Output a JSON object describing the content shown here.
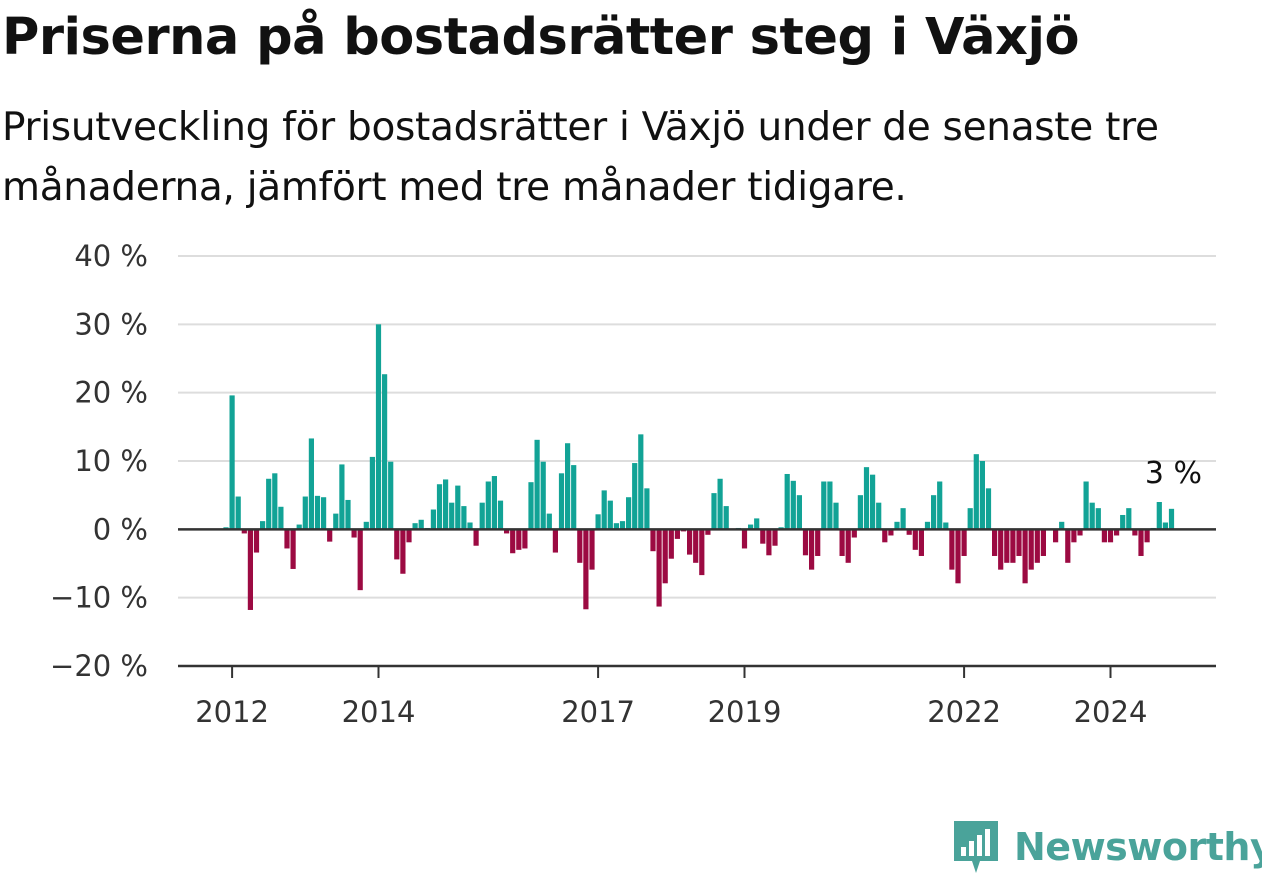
{
  "title": "Priserna på bostadsrätter steg i Växjö",
  "subtitle": "Prisutveckling för bostadsrätter i Växjö under de senaste tre månaderna, jämfört med tre månader tidigare.",
  "brand": {
    "name": "Newsworthy",
    "color": "#4aa39a"
  },
  "colors": {
    "positive": "#12a396",
    "negative": "#9c0a42",
    "grid": "#dddddd",
    "axis": "#333333"
  },
  "chart_data": {
    "type": "bar",
    "title": "Priserna på bostadsrätter steg i Växjö",
    "subtitle": "Prisutveckling för bostadsrätter i Växjö under de senaste tre månaderna, jämfört med tre månader tidigare.",
    "xlabel": "",
    "ylabel": "",
    "ylim": [
      -20,
      40
    ],
    "y_ticks": [
      40,
      30,
      20,
      10,
      0,
      -10,
      -20
    ],
    "y_tick_labels": [
      "40 %",
      "30 %",
      "20 %",
      "10 %",
      "0 %",
      "−10 %",
      "−20 %"
    ],
    "x_ticks": [
      2012,
      2014,
      2017,
      2019,
      2022,
      2024
    ],
    "x_tick_labels": [
      "2012",
      "2014",
      "2017",
      "2019",
      "2022",
      "2024"
    ],
    "grid": true,
    "frequency": "monthly",
    "first_month": "2011-12",
    "annotation": "3 %",
    "values": [
      0.3,
      19.6,
      4.8,
      -0.6,
      -11.8,
      -3.4,
      1.2,
      7.4,
      8.2,
      3.3,
      -2.8,
      -5.8,
      0.7,
      4.8,
      13.3,
      4.9,
      4.7,
      -1.8,
      2.3,
      9.5,
      4.3,
      -1.2,
      -8.9,
      1.1,
      10.6,
      30.0,
      22.7,
      9.9,
      -4.4,
      -6.5,
      -1.9,
      0.9,
      1.4,
      0.2,
      2.9,
      6.6,
      7.3,
      3.9,
      6.4,
      3.4,
      1.0,
      -2.4,
      3.9,
      7.0,
      7.8,
      4.2,
      -0.6,
      -3.5,
      -3.0,
      -2.8,
      6.9,
      13.1,
      9.9,
      2.3,
      -3.4,
      8.2,
      12.6,
      9.4,
      -4.9,
      -11.7,
      -5.9,
      2.2,
      5.7,
      4.2,
      0.9,
      1.2,
      4.7,
      9.7,
      13.9,
      6.0,
      -3.2,
      -11.3,
      -7.9,
      -4.3,
      -1.4,
      -0.3,
      -3.7,
      -4.9,
      -6.7,
      -0.8,
      5.3,
      7.4,
      3.4,
      0.0,
      0.2,
      -2.8,
      0.7,
      1.6,
      -2.1,
      -3.8,
      -2.4,
      0.3,
      8.1,
      7.1,
      5.0,
      -3.8,
      -5.9,
      -3.9,
      7.0,
      7.0,
      3.9,
      -3.9,
      -4.9,
      -1.2,
      5.0,
      9.1,
      8.0,
      3.9,
      -1.9,
      -0.9,
      1.1,
      3.1,
      -0.8,
      -3.0,
      -3.9,
      1.1,
      5.0,
      7.0,
      1.0,
      -5.9,
      -7.9,
      -3.9,
      3.1,
      11.0,
      10.0,
      6.0,
      -3.9,
      -5.9,
      -4.9,
      -4.9,
      -3.9,
      -7.9,
      -5.9,
      -4.9,
      -3.9,
      -0.1,
      -1.9,
      1.1,
      -4.9,
      -1.9,
      -0.9,
      7.0,
      3.9,
      3.1,
      -1.9,
      -1.9,
      -0.9,
      2.1,
      3.1,
      -0.9,
      -3.9,
      -1.9,
      0.2,
      4.0,
      1.0,
      3.0
    ]
  }
}
